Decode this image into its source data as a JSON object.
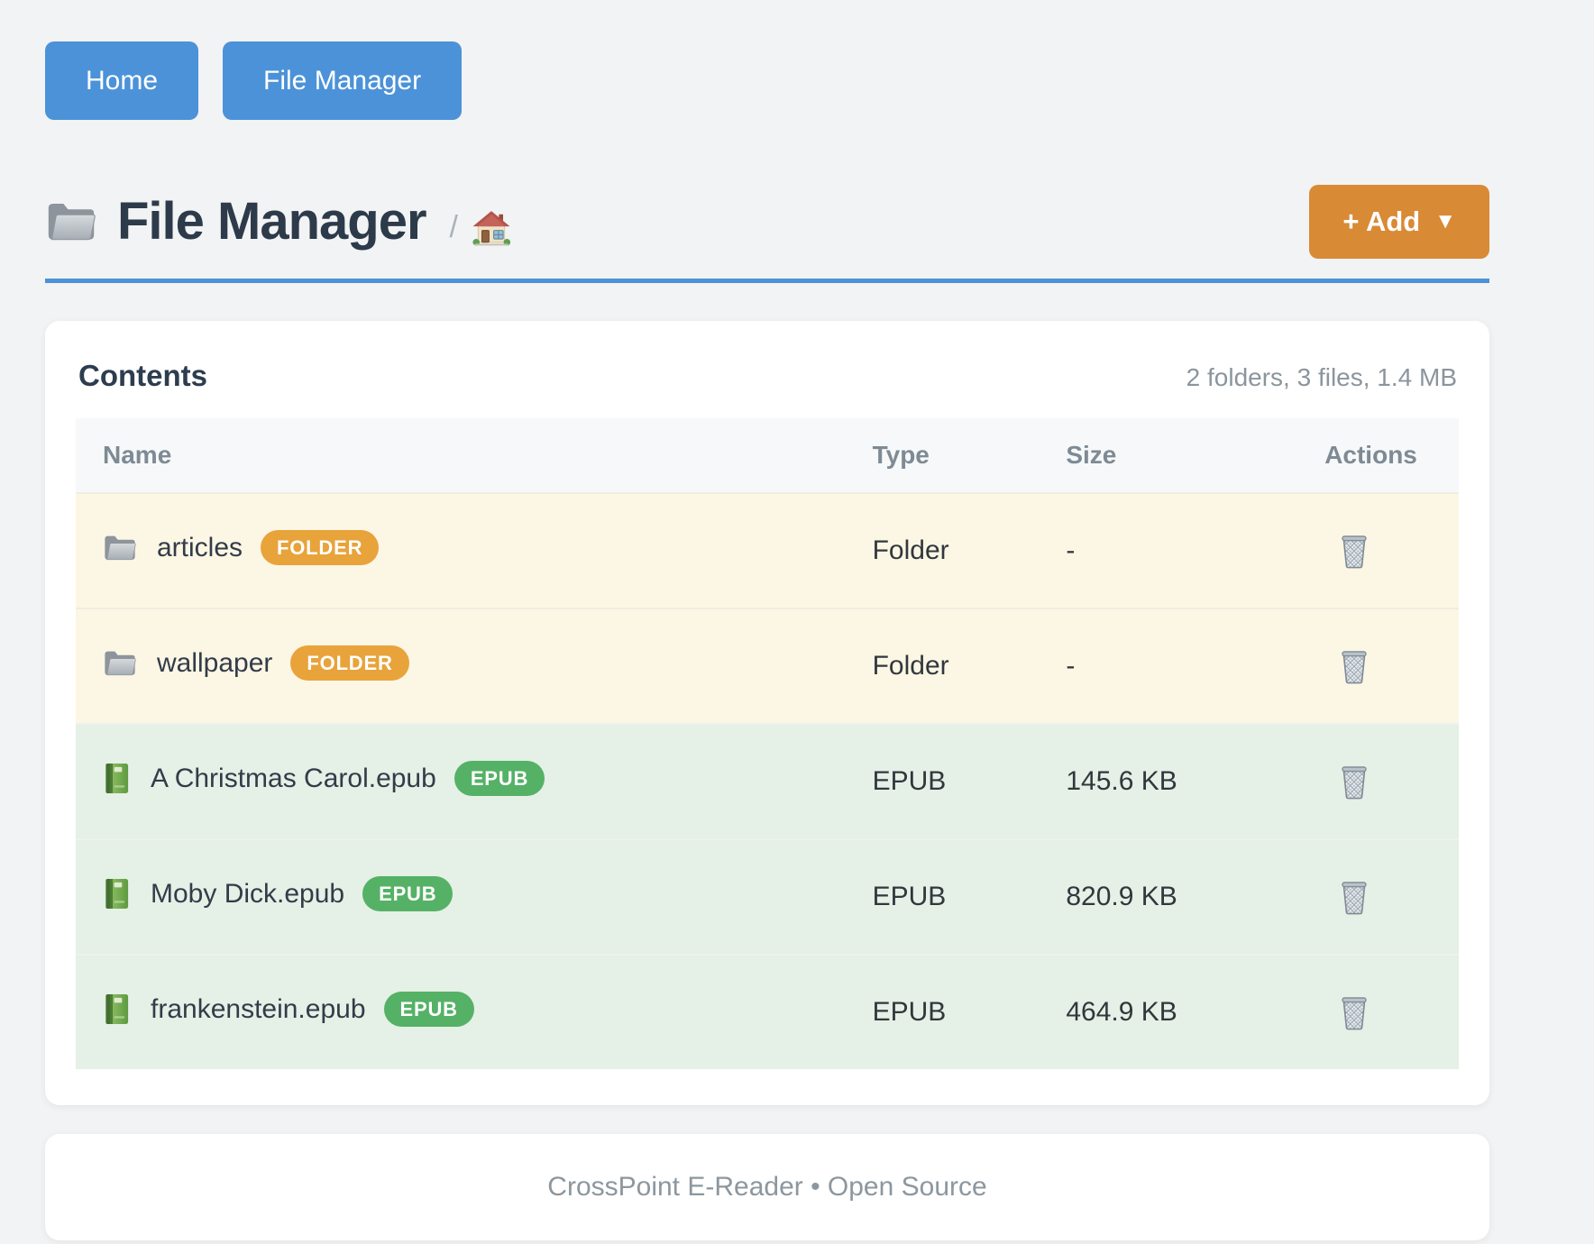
{
  "nav": {
    "home_label": "Home",
    "file_manager_label": "File Manager"
  },
  "header": {
    "title": "File Manager",
    "title_icon": "folder-icon",
    "breadcrumb_separator": "/",
    "breadcrumb_home_icon": "house-icon",
    "add_button_label": "+ Add",
    "add_button_caret": "▼"
  },
  "contents": {
    "heading": "Contents",
    "summary": "2 folders, 3 files, 1.4 MB",
    "columns": [
      "Name",
      "Type",
      "Size",
      "Actions"
    ],
    "action_icon": "trash-icon",
    "rows": [
      {
        "name": "articles",
        "kind": "folder",
        "icon": "folder-icon",
        "badge": "FOLDER",
        "type": "Folder",
        "size": "-"
      },
      {
        "name": "wallpaper",
        "kind": "folder",
        "icon": "folder-icon",
        "badge": "FOLDER",
        "type": "Folder",
        "size": "-"
      },
      {
        "name": "A Christmas Carol.epub",
        "kind": "epub",
        "icon": "book-icon",
        "badge": "EPUB",
        "type": "EPUB",
        "size": "145.6 KB"
      },
      {
        "name": "Moby Dick.epub",
        "kind": "epub",
        "icon": "book-icon",
        "badge": "EPUB",
        "type": "EPUB",
        "size": "820.9 KB"
      },
      {
        "name": "frankenstein.epub",
        "kind": "epub",
        "icon": "book-icon",
        "badge": "EPUB",
        "type": "EPUB",
        "size": "464.9 KB"
      }
    ]
  },
  "footer": {
    "text": "CrossPoint E-Reader • Open Source"
  },
  "colors": {
    "primary_blue": "#4c92d8",
    "add_orange": "#d98a35",
    "folder_badge": "#e8a33b",
    "epub_badge": "#55b166",
    "folder_row_bg": "#fcf6e4",
    "epub_row_bg": "#e5f0e6",
    "page_bg": "#f2f3f4"
  }
}
